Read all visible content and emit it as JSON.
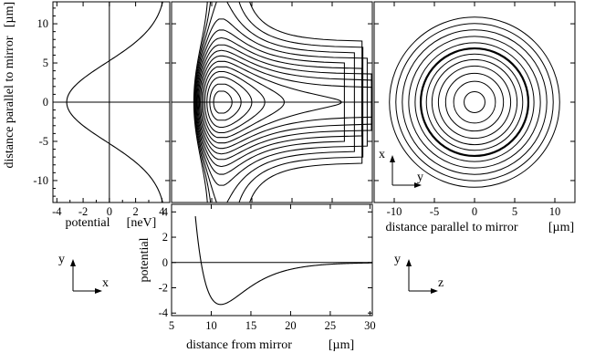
{
  "chart_data": [
    {
      "type": "line",
      "panel": "potential-vs-parallel-distance",
      "xlabel": "potential",
      "xunit": "[neV]",
      "ylabel": "distance parallel to mirror",
      "yunit": "[µm]",
      "xlim": [
        -4.3,
        4.6
      ],
      "ylim": [
        -12.8,
        12.8
      ],
      "xticks": [
        -4,
        -2,
        0,
        2,
        4
      ],
      "yticks": [
        -10,
        -5,
        0,
        5,
        10
      ],
      "curve": {
        "formula": "V(y) = -3.25 + 7.6*(1 - exp(-y^2/50))",
        "x": [
          -3.25,
          -2.65,
          -1.13,
          0.8,
          2.33,
          3.31,
          3.88
        ],
        "y": [
          0,
          2,
          4,
          6,
          8,
          10,
          12
        ]
      }
    },
    {
      "type": "contour",
      "panel": "contours-side-view",
      "xlim": [
        5,
        30
      ],
      "ylim": [
        -12.8,
        12.8
      ],
      "center": [
        11.2,
        0
      ],
      "note": "closed contours around minimum, open contours to the left"
    },
    {
      "type": "contour",
      "panel": "contours-top-view",
      "xlabel": "distance parallel to mirror",
      "xunit": "[µm]",
      "xlim": [
        -12.5,
        12.5
      ],
      "ylim": [
        -12.8,
        12.8
      ],
      "xticks": [
        -10,
        -5,
        0,
        5,
        10
      ],
      "radii": [
        1.3,
        2.6,
        3.6,
        4.5,
        5.3,
        6.0,
        6.7,
        7.4,
        8.2,
        9.0,
        9.8,
        10.6
      ],
      "bold_radius": 6.7
    },
    {
      "type": "line",
      "panel": "potential-vs-distance-from-mirror",
      "xlabel": "distance from mirror",
      "xunit": "[µm]",
      "ylabel": "potential",
      "xlim": [
        5,
        30.3
      ],
      "ylim": [
        -4.2,
        4.6
      ],
      "xticks": [
        5,
        10,
        15,
        20,
        25,
        30
      ],
      "yticks": [
        -4,
        -2,
        0,
        2,
        4
      ],
      "curve": {
        "formula": "V(z) = 4*(e^{-2a(z-11.2)} - 2e^{-a(z-11.2)})*0.83, a=0.28",
        "x": [
          8.2,
          9,
          10,
          11.2,
          13,
          16,
          20,
          25,
          30
        ],
        "y": [
          4.6,
          1.0,
          -2.5,
          -3.32,
          -2.6,
          -1.3,
          -0.5,
          -0.14,
          -0.03
        ]
      }
    }
  ],
  "axes_glyphs": {
    "xy": {
      "vertical": "y",
      "horizontal": "x"
    },
    "xy_top": {
      "vertical": "x",
      "horizontal": "y"
    },
    "yz": {
      "vertical": "y",
      "horizontal": "z"
    }
  }
}
